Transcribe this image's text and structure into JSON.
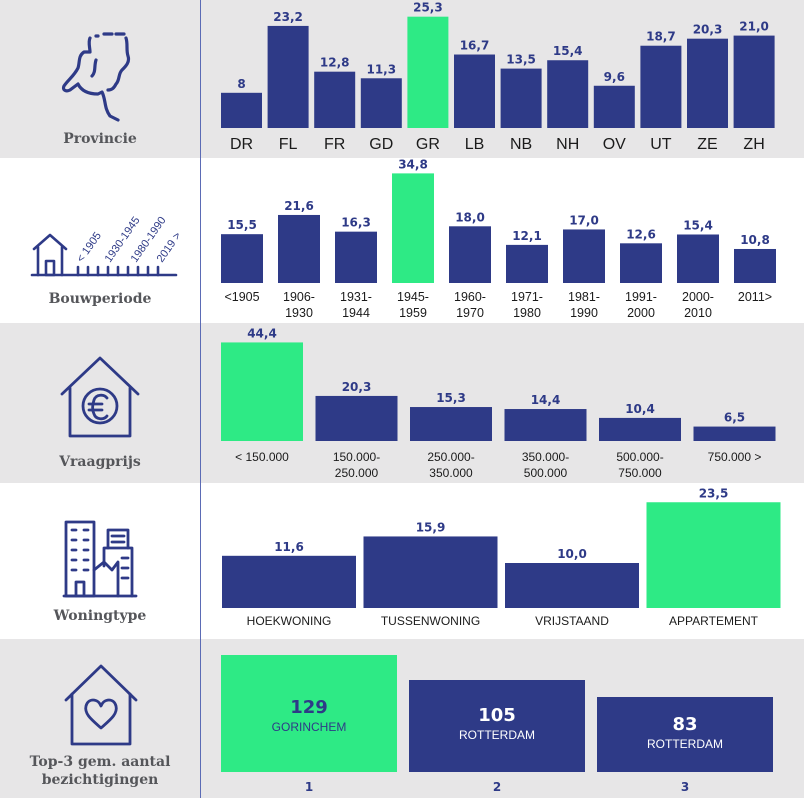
{
  "colors": {
    "bar": "#2e3a87",
    "highlight": "#2eea85",
    "label": "#2e3a87",
    "icon": "#2e3a87"
  },
  "rows": [
    {
      "label": "Provincie",
      "icon": "map-of-netherlands-icon"
    },
    {
      "label": "Bouwperiode",
      "icon": "house-timeline-icon"
    },
    {
      "label": "Vraagprijs",
      "icon": "house-euro-icon"
    },
    {
      "label": "Woningtype",
      "icon": "apartment-buildings-icon"
    },
    {
      "label": "Top-3 gem. aantal bezichtigingen",
      "icon": "house-heart-icon"
    }
  ],
  "icon_text": {
    "periods": [
      "< 1905",
      "1930-1945",
      "1980-1990",
      "2019 >"
    ]
  },
  "chart_data": [
    {
      "type": "bar",
      "categories": [
        "DR",
        "FL",
        "FR",
        "GD",
        "GR",
        "LB",
        "NB",
        "NH",
        "OV",
        "UT",
        "ZE",
        "ZH"
      ],
      "values": [
        8,
        23.2,
        12.8,
        11.3,
        25.3,
        16.7,
        13.5,
        15.4,
        9.6,
        18.7,
        20.3,
        21.0
      ],
      "value_labels": [
        "8",
        "23,2",
        "12,8",
        "11,3",
        "25,3",
        "16,7",
        "13,5",
        "15,4",
        "9,6",
        "18,7",
        "20,3",
        "21,0"
      ],
      "highlight_index": 4
    },
    {
      "type": "bar",
      "categories": [
        [
          "<1905"
        ],
        [
          "1906-",
          "1930"
        ],
        [
          "1931-",
          "1944"
        ],
        [
          "1945-",
          "1959"
        ],
        [
          "1960-",
          "1970"
        ],
        [
          "1971-",
          "1980"
        ],
        [
          "1981-",
          "1990"
        ],
        [
          "1991-",
          "2000"
        ],
        [
          "2000-",
          "2010"
        ],
        [
          "2011>"
        ]
      ],
      "values": [
        15.5,
        21.6,
        16.3,
        34.8,
        18.0,
        12.1,
        17.0,
        12.6,
        15.4,
        10.8
      ],
      "value_labels": [
        "15,5",
        "21,6",
        "16,3",
        "34,8",
        "18,0",
        "12,1",
        "17,0",
        "12,6",
        "15,4",
        "10,8"
      ],
      "highlight_index": 3
    },
    {
      "type": "bar",
      "categories": [
        [
          "< 150.000"
        ],
        [
          "150.000-",
          "250.000"
        ],
        [
          "250.000-",
          "350.000"
        ],
        [
          "350.000-",
          "500.000"
        ],
        [
          "500.000-",
          "750.000"
        ],
        [
          "750.000 >"
        ]
      ],
      "values": [
        44.4,
        20.3,
        15.3,
        14.4,
        10.4,
        6.5
      ],
      "value_labels": [
        "44,4",
        "20,3",
        "15,3",
        "14,4",
        "10,4",
        "6,5"
      ],
      "highlight_index": 0
    },
    {
      "type": "bar",
      "categories": [
        [
          "HOEKWONING"
        ],
        [
          "TUSSENWONING"
        ],
        [
          "VRIJSTAAND"
        ],
        [
          "APPARTEMENT"
        ]
      ],
      "values": [
        11.6,
        15.9,
        10.0,
        23.5
      ],
      "value_labels": [
        "11,6",
        "15,9",
        "10,0",
        "23,5"
      ],
      "highlight_index": 3
    },
    {
      "type": "bar",
      "categories": [
        "1",
        "2",
        "3"
      ],
      "values": [
        129,
        105,
        83
      ],
      "cities": [
        "GORINCHEM",
        "ROTTERDAM",
        "ROTTERDAM"
      ],
      "highlight_index": 0
    }
  ]
}
